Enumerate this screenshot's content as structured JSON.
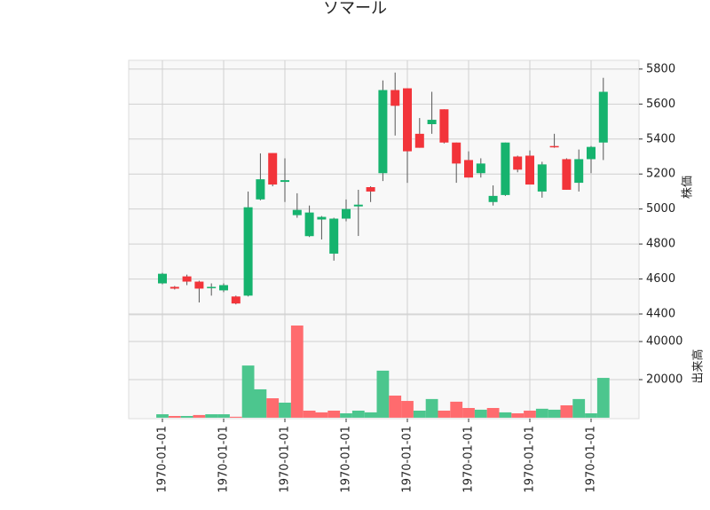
{
  "chart_data": {
    "type": "candlestick",
    "title": "ソマール",
    "categories": [
      "1970-01-01",
      null,
      null,
      null,
      null,
      "1970-01-01",
      null,
      null,
      null,
      null,
      "1970-01-01",
      null,
      null,
      null,
      null,
      "1970-01-01",
      null,
      null,
      null,
      null,
      "1970-01-01",
      null,
      null,
      null,
      null,
      "1970-01-01",
      null,
      null,
      null,
      null,
      "1970-01-01",
      null,
      null,
      null,
      null,
      "1970-01-01",
      null
    ],
    "open": [
      4575,
      4555,
      4615,
      4585,
      4550,
      4535,
      4500,
      4505,
      5055,
      5320,
      5155,
      4965,
      4845,
      4940,
      4745,
      4945,
      5015,
      5125,
      5205,
      5680,
      5690,
      5430,
      5485,
      5570,
      5380,
      5280,
      5205,
      5040,
      5080,
      5300,
      5305,
      5100,
      5360,
      5285,
      5150,
      5285,
      5380
    ],
    "high": [
      4635,
      4560,
      4625,
      4590,
      4575,
      4575,
      4505,
      5100,
      5318,
      5320,
      5290,
      5090,
      5020,
      4960,
      4950,
      5055,
      5110,
      5130,
      5735,
      5780,
      5690,
      5520,
      5670,
      5570,
      5380,
      5330,
      5290,
      5135,
      5380,
      5305,
      5335,
      5270,
      5430,
      5290,
      5340,
      5360,
      5750
    ],
    "low": [
      4570,
      4540,
      4565,
      4466,
      4505,
      4525,
      4455,
      4500,
      5050,
      5130,
      5040,
      4950,
      4840,
      4826,
      4705,
      4930,
      4846,
      5040,
      5160,
      5420,
      5150,
      5350,
      5430,
      5375,
      5150,
      5180,
      5180,
      5020,
      5075,
      5210,
      5140,
      5065,
      5350,
      5110,
      5100,
      5205,
      5280
    ],
    "close": [
      4630,
      4545,
      4585,
      4545,
      4555,
      4565,
      4460,
      5010,
      5170,
      5140,
      5165,
      4995,
      4980,
      4955,
      4945,
      5000,
      5025,
      5100,
      5680,
      5590,
      5330,
      5350,
      5510,
      5380,
      5260,
      5180,
      5260,
      5075,
      5380,
      5225,
      5140,
      5255,
      5355,
      5110,
      5285,
      5355,
      5670
    ],
    "up_color": "#16b36e",
    "down_color": "#f2343a",
    "ylim": [
      4395,
      5850
    ],
    "yticks": [
      4400,
      4600,
      4800,
      5000,
      5200,
      5400,
      5600,
      5800
    ],
    "ylabel": "株価",
    "grid": true,
    "volume": {
      "values": [
        1800,
        900,
        900,
        1400,
        1800,
        1800,
        500,
        27400,
        14900,
        10200,
        7900,
        48400,
        3700,
        2800,
        3700,
        2300,
        3700,
        2800,
        24700,
        11600,
        8800,
        3700,
        9800,
        3700,
        8400,
        5100,
        4200,
        5100,
        2800,
        2300,
        3700,
        4700,
        4200,
        6500,
        9800,
        2300,
        20900
      ],
      "colors": [
        "#4cc68e",
        "#ff6b6e",
        "#4cc68e",
        "#ff6b6e",
        "#4cc68e",
        "#4cc68e",
        "#ff6b6e",
        "#4cc68e",
        "#4cc68e",
        "#ff6b6e",
        "#4cc68e",
        "#ff6b6e",
        "#ff6b6e",
        "#ff6b6e",
        "#ff6b6e",
        "#4cc68e",
        "#4cc68e",
        "#4cc68e",
        "#4cc68e",
        "#ff6b6e",
        "#ff6b6e",
        "#4cc68e",
        "#4cc68e",
        "#ff6b6e",
        "#ff6b6e",
        "#ff6b6e",
        "#4cc68e",
        "#ff6b6e",
        "#4cc68e",
        "#ff6b6e",
        "#ff6b6e",
        "#4cc68e",
        "#4cc68e",
        "#ff6b6e",
        "#4cc68e",
        "#4cc68e",
        "#4cc68e"
      ],
      "ylim": [
        -500,
        54000
      ],
      "yticks": [
        20000,
        40000
      ],
      "ylabel": "出来高"
    }
  }
}
